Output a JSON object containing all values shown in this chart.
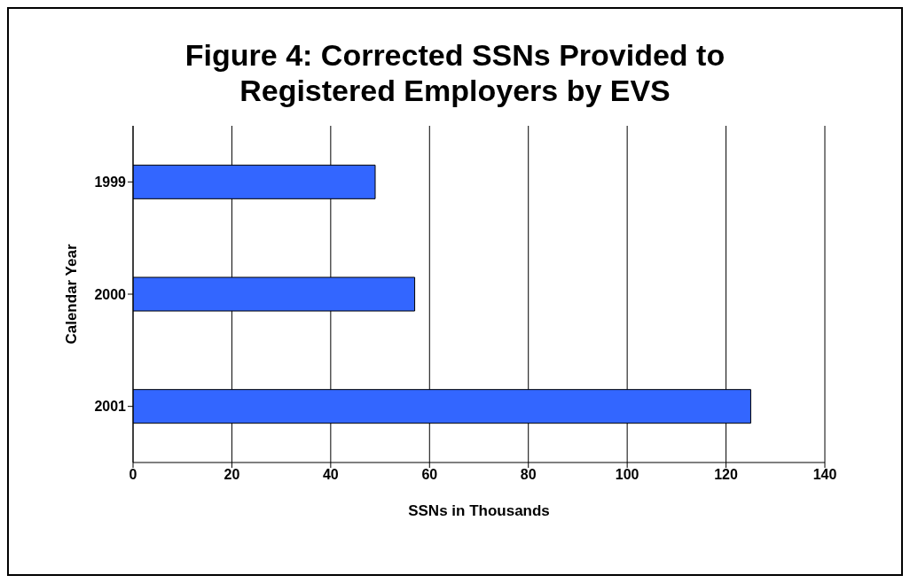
{
  "chart_data": {
    "type": "bar",
    "orientation": "horizontal",
    "title": "Figure 4: Corrected SSNs Provided to Registered Employers by EVS",
    "categories": [
      "1999",
      "2000",
      "2001"
    ],
    "values": [
      49,
      57,
      125
    ],
    "color": "#3366ff",
    "xlabel": "SSNs in Thousands",
    "ylabel": "Calendar Year",
    "xlim": [
      0,
      140
    ],
    "xticks": [
      0,
      20,
      40,
      60,
      80,
      100,
      120,
      140
    ],
    "grid": "x"
  }
}
